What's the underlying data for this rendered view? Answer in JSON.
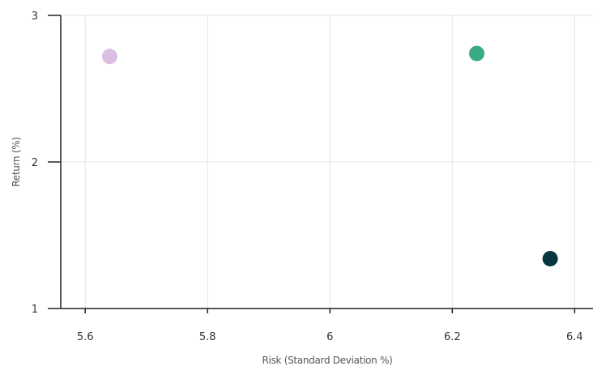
{
  "chart_data": {
    "type": "scatter",
    "title": "",
    "xlabel": "Risk (Standard Deviation %)",
    "ylabel": "Return (%)",
    "xlim": [
      5.56,
      6.43
    ],
    "ylim": [
      1,
      3
    ],
    "x_ticks": [
      5.6,
      5.8,
      6,
      6.2,
      6.4
    ],
    "x_tick_labels": [
      "5.6",
      "5.8",
      "6",
      "6.2",
      "6.4"
    ],
    "y_ticks": [
      1,
      2,
      3
    ],
    "y_tick_labels": [
      "1",
      "2",
      "3"
    ],
    "grid": true,
    "points": [
      {
        "x": 5.64,
        "y": 2.72,
        "color": "#dbbfe3"
      },
      {
        "x": 6.24,
        "y": 2.74,
        "color": "#3aaa84"
      },
      {
        "x": 6.36,
        "y": 1.34,
        "color": "#06363f"
      }
    ]
  }
}
